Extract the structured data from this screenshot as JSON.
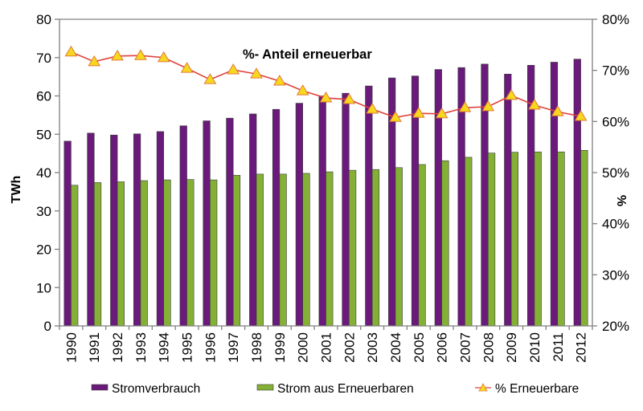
{
  "chart_data": {
    "type": "bar",
    "title": "",
    "annotation": "%- Anteil erneuerbar",
    "xlabel": "",
    "ylabel": "TWh",
    "y2label": "%",
    "ylim": [
      0,
      80
    ],
    "y2lim": [
      20,
      80
    ],
    "yticks": [
      "0",
      "10",
      "20",
      "30",
      "40",
      "50",
      "60",
      "70",
      "80"
    ],
    "y2ticks": [
      "20%",
      "30%",
      "40%",
      "50%",
      "60%",
      "70%",
      "80%"
    ],
    "grid": false,
    "legend_position": "bottom",
    "categories": [
      "1990",
      "1991",
      "1992",
      "1993",
      "1994",
      "1995",
      "1996",
      "1997",
      "1998",
      "1999",
      "2000",
      "2001",
      "2002",
      "2003",
      "2004",
      "2005",
      "2006",
      "2007",
      "2008",
      "2009",
      "2010",
      "2011",
      "2012"
    ],
    "series": [
      {
        "name": "Stromverbrauch",
        "type": "bar",
        "axis": "left",
        "color": "#6a1a7a",
        "values": [
          48.2,
          50.3,
          49.8,
          50.1,
          50.7,
          52.2,
          53.5,
          54.2,
          55.3,
          56.5,
          58.1,
          60.0,
          60.7,
          62.6,
          64.7,
          65.2,
          66.9,
          67.4,
          68.3,
          65.7,
          68.0,
          68.8,
          69.6
        ]
      },
      {
        "name": "Strom aus Erneuerbaren",
        "type": "bar",
        "axis": "left",
        "color": "#84b135",
        "values": [
          36.7,
          37.4,
          37.6,
          37.9,
          38.1,
          38.2,
          38.1,
          39.3,
          39.6,
          39.6,
          39.8,
          40.2,
          40.6,
          40.8,
          41.3,
          42.1,
          43.1,
          44.0,
          45.1,
          45.3,
          45.4,
          45.4,
          45.8
        ]
      },
      {
        "name": "% Erneuerbare",
        "type": "line",
        "axis": "right",
        "color": "#e0403a",
        "marker": "triangle",
        "marker_color": "#f7d81e",
        "values": [
          73.6,
          71.7,
          72.8,
          72.9,
          72.5,
          70.4,
          68.2,
          70.1,
          69.3,
          67.9,
          66.0,
          64.6,
          64.3,
          62.4,
          60.8,
          61.6,
          61.5,
          62.7,
          62.9,
          65.1,
          63.2,
          61.9,
          61.0
        ]
      }
    ]
  }
}
